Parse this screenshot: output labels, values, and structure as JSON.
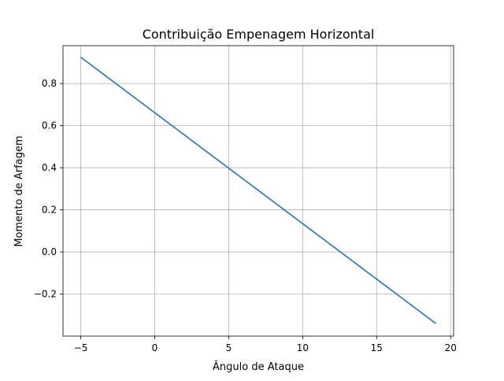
{
  "chart_data": {
    "type": "line",
    "title": "Contribuição Empenagem Horizontal",
    "xlabel": "Ângulo de Ataque",
    "ylabel": "Momento de Arfagem",
    "xlim": [
      -6.2,
      20.2
    ],
    "ylim": [
      -0.4,
      0.98
    ],
    "xticks": [
      -5,
      0,
      5,
      10,
      15,
      20
    ],
    "xtick_labels": [
      "−5",
      "0",
      "5",
      "10",
      "15",
      "20"
    ],
    "yticks": [
      -0.2,
      0.0,
      0.2,
      0.4,
      0.6,
      0.8
    ],
    "ytick_labels": [
      "−0.2",
      "0.0",
      "0.2",
      "0.4",
      "0.6",
      "0.8"
    ],
    "grid": true,
    "series": [
      {
        "color": "#1f77b4",
        "x": [
          -5,
          19
        ],
        "y": [
          0.925,
          -0.34
        ]
      }
    ]
  }
}
